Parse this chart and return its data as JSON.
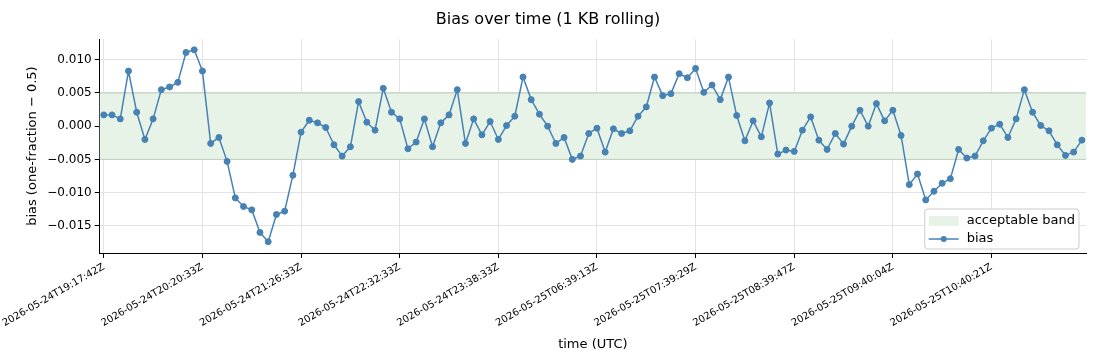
{
  "chart_data": {
    "type": "line",
    "title": "Bias over time (1 KB rolling)",
    "xlabel": "time (UTC)",
    "ylabel": "bias (one-fraction − 0.5)",
    "categories": [
      "2026-05-24T19:17:42Z",
      null,
      null,
      null,
      null,
      null,
      null,
      null,
      null,
      null,
      null,
      null,
      "2026-05-24T20:20:33Z",
      null,
      null,
      null,
      null,
      null,
      null,
      null,
      null,
      null,
      null,
      null,
      "2026-05-24T21:26:33Z",
      null,
      null,
      null,
      null,
      null,
      null,
      null,
      null,
      null,
      null,
      null,
      "2026-05-24T22:32:33Z",
      null,
      null,
      null,
      null,
      null,
      null,
      null,
      null,
      null,
      null,
      null,
      "2026-05-24T23:38:33Z",
      null,
      null,
      null,
      null,
      null,
      null,
      null,
      null,
      null,
      null,
      null,
      "2026-05-25T06:39:13Z",
      null,
      null,
      null,
      null,
      null,
      null,
      null,
      null,
      null,
      null,
      null,
      "2026-05-25T07:39:29Z",
      null,
      null,
      null,
      null,
      null,
      null,
      null,
      null,
      null,
      null,
      null,
      "2026-05-25T08:39:47Z",
      null,
      null,
      null,
      null,
      null,
      null,
      null,
      null,
      null,
      null,
      null,
      "2026-05-25T09:40:04Z",
      null,
      null,
      null,
      null,
      null,
      null,
      null,
      null,
      null,
      null,
      null,
      "2026-05-25T10:40:21Z",
      null,
      null,
      null,
      null,
      null,
      null,
      null,
      null,
      null,
      null,
      null
    ],
    "series": [
      {
        "name": "bias",
        "color": "#4682b4",
        "values": [
          0.0017,
          0.0017,
          0.0011,
          0.0083,
          0.0021,
          -0.002,
          0.0011,
          0.0055,
          0.0059,
          0.0066,
          0.0111,
          0.0115,
          0.0083,
          -0.0026,
          -0.0017,
          -0.0053,
          -0.0108,
          -0.0121,
          -0.0126,
          -0.016,
          -0.0174,
          -0.0133,
          -0.0128,
          -0.0074,
          -0.0009,
          0.0009,
          0.0005,
          -0.0002,
          -0.0028,
          -0.0045,
          -0.0031,
          0.0037,
          0.0006,
          -0.0006,
          0.0057,
          0.0021,
          0.0011,
          -0.0034,
          -0.0024,
          0.0011,
          -0.0031,
          0.0005,
          0.0017,
          0.0055,
          -0.0026,
          0.0011,
          -0.0013,
          0.0007,
          -0.002,
          0.0001,
          0.0015,
          0.0074,
          0.004,
          0.0018,
          0.0,
          -0.0026,
          -0.0017,
          -0.005,
          -0.0045,
          -0.0011,
          -0.0003,
          -0.0039,
          -0.0004,
          -0.0011,
          -0.0007,
          0.0015,
          0.0029,
          0.0074,
          0.0046,
          0.0049,
          0.0079,
          0.0073,
          0.0087,
          0.0051,
          0.0062,
          0.004,
          0.0074,
          0.0016,
          -0.0022,
          0.0008,
          -0.0016,
          0.0035,
          -0.0042,
          -0.0036,
          -0.0038,
          -0.0006,
          0.0014,
          -0.0021,
          -0.0035,
          -0.0011,
          -0.0027,
          0.0,
          0.0024,
          0.0,
          0.0034,
          0.0008,
          0.0024,
          -0.0014,
          -0.0088,
          -0.0072,
          -0.0111,
          -0.0098,
          -0.0086,
          -0.0079,
          -0.0035,
          -0.0048,
          -0.0045,
          -0.0022,
          -0.0003,
          0.0003,
          -0.0017,
          0.0011,
          0.0055,
          0.0021,
          0.0001,
          -0.0007,
          -0.0028,
          -0.0044,
          -0.0039,
          -0.0021
        ]
      }
    ],
    "bands": [
      {
        "axis": "y",
        "from": -0.005,
        "to": 0.005,
        "label": "acceptable band",
        "color": "#e8f3e8"
      }
    ],
    "ylim": [
      -0.0191,
      0.0131
    ],
    "yticks": [
      {
        "value": -0.015,
        "label": "−0.015"
      },
      {
        "value": -0.01,
        "label": "−0.010"
      },
      {
        "value": -0.005,
        "label": "−0.005"
      },
      {
        "value": 0,
        "label": "0.000"
      },
      {
        "value": 0.005,
        "label": "0.005"
      },
      {
        "value": 0.01,
        "label": "0.010"
      }
    ],
    "grid": true,
    "legend": "bottom right",
    "marker": "circle",
    "line_style": "solid"
  }
}
